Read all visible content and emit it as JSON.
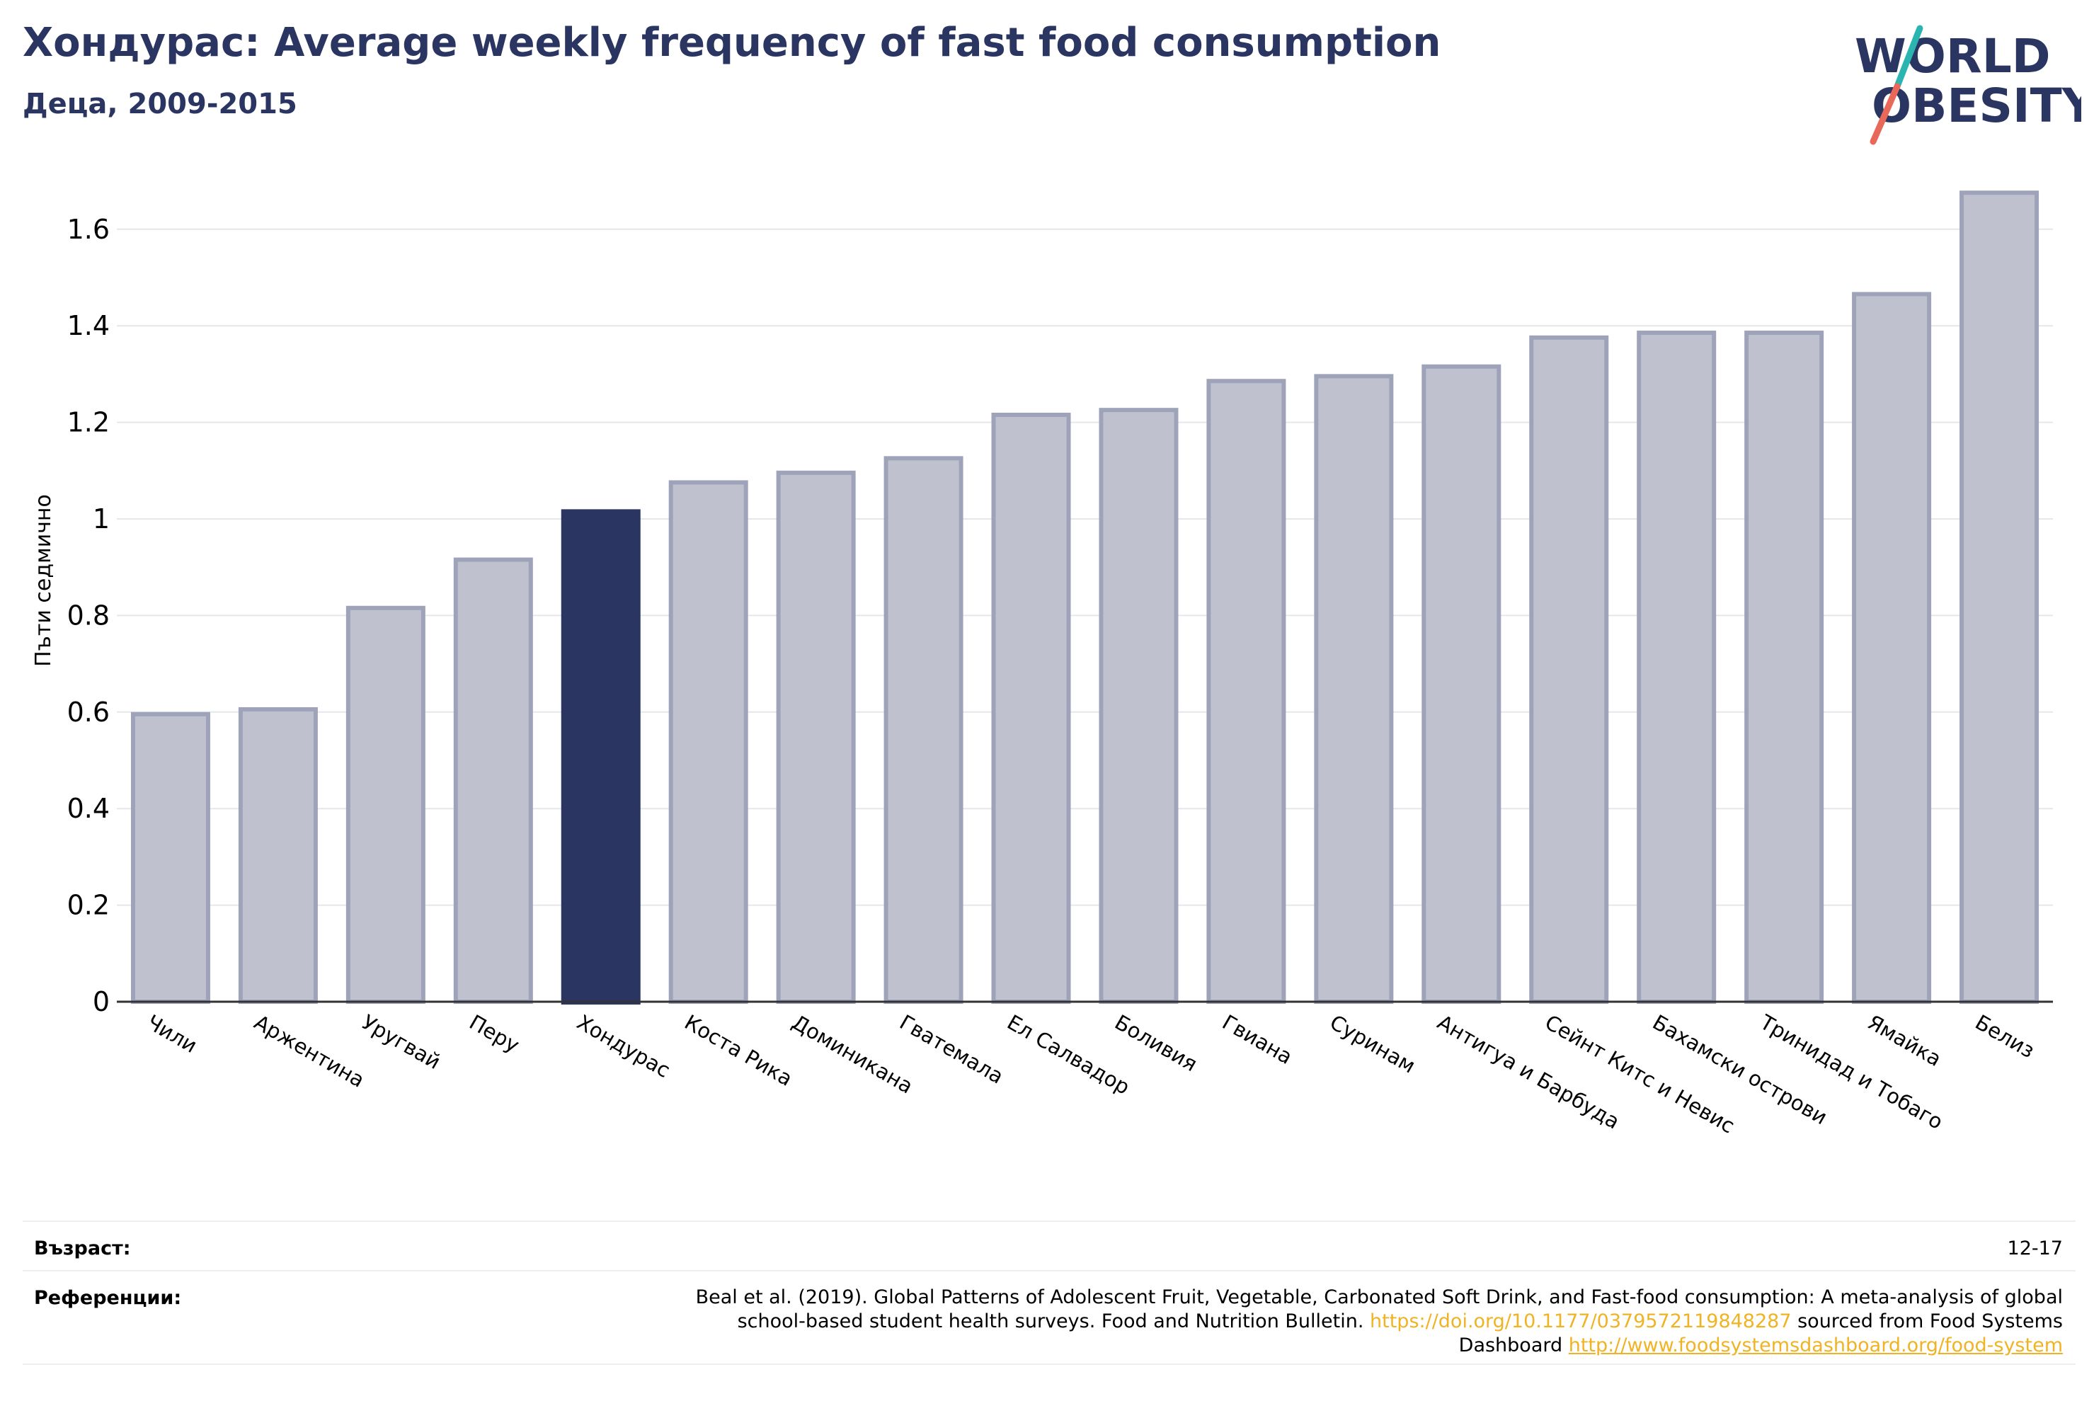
{
  "header": {
    "title": "Хондурас: Average weekly frequency of fast food consumption",
    "subtitle": "Деца, 2009-2015"
  },
  "logo": {
    "line1": "WORLD",
    "line2": "OBESITY",
    "colors": {
      "text": "#2a3561",
      "slash_top": "#2ab5b0",
      "slash_bottom": "#e8695a"
    }
  },
  "chart_data": {
    "type": "bar",
    "ylabel": "Пъти седмично",
    "ylim": [
      0,
      1.7
    ],
    "yticks": [
      {
        "value": 0,
        "label": "0"
      },
      {
        "value": 0.2,
        "label": "0.2"
      },
      {
        "value": 0.4,
        "label": "0.4"
      },
      {
        "value": 0.6,
        "label": "0.6"
      },
      {
        "value": 0.8,
        "label": "0.8"
      },
      {
        "value": 1,
        "label": "1"
      },
      {
        "value": 1.2,
        "label": "1.2"
      },
      {
        "value": 1.4,
        "label": "1.4"
      },
      {
        "value": 1.6,
        "label": "1.6"
      }
    ],
    "categories": [
      "Чили",
      "Аржентина",
      "Уругвай",
      "Перу",
      "Хондурас",
      "Коста Рика",
      "Доминикана",
      "Гватемала",
      "Ел Салвадор",
      "Боливия",
      "Гвиана",
      "Суринам",
      "Антигуа и Барбуда",
      "Сейнт Китс и Невис",
      "Бахамски острови",
      "Тринидад и Тобаго",
      "Ямайка",
      "Белиз"
    ],
    "values": [
      0.6,
      0.61,
      0.82,
      0.92,
      1.02,
      1.08,
      1.1,
      1.13,
      1.22,
      1.23,
      1.29,
      1.3,
      1.32,
      1.38,
      1.39,
      1.39,
      1.47,
      1.68
    ],
    "highlight": "Хондурас",
    "grid": true,
    "colors": {
      "highlight_fill": "#2a3561",
      "bar_fill": "#bfc2ce",
      "bar_stroke": "#9ea3ba",
      "grid": "#e6e7eb",
      "axis": "#333333"
    }
  },
  "footer": {
    "age_label": "Възраст:",
    "age_value": "12-17",
    "ref_label": "Референции:",
    "ref_text_1": "Beal et al. (2019). Global Patterns of Adolescent Fruit, Vegetable, Carbonated Soft Drink, and Fast-food consumption: A meta-analysis of global school-based student health surveys. Food and Nutrition Bulletin. ",
    "ref_link_1": "https://doi.org/10.1177/0379572119848287",
    "ref_text_2": " sourced from Food Systems Dashboard ",
    "ref_link_2": "http://www.foodsystemsdashboard.org/food-system"
  }
}
